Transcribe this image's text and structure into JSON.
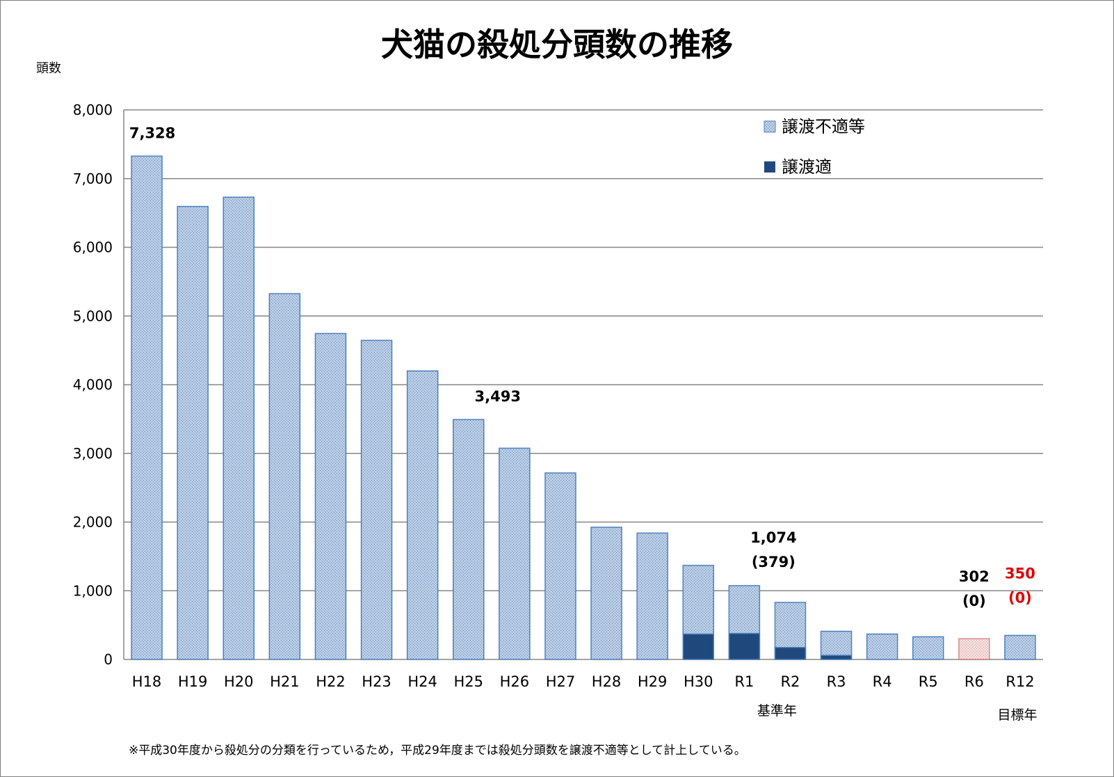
{
  "chart_data": {
    "type": "bar",
    "stacked": true,
    "title": "犬猫の殺処分頭数の推移",
    "ylabel": "頭数",
    "xlabel": "",
    "ylim": [
      0,
      8000
    ],
    "yticks": [
      0,
      1000,
      2000,
      3000,
      4000,
      5000,
      6000,
      7000,
      8000
    ],
    "ytick_labels": [
      "0",
      "1,000",
      "2,000",
      "3,000",
      "4,000",
      "5,000",
      "6,000",
      "7,000",
      "8,000"
    ],
    "grid": true,
    "legend_position": "top-right",
    "categories": [
      "H18",
      "H19",
      "H20",
      "H21",
      "H22",
      "H23",
      "H24",
      "H25",
      "H26",
      "H27",
      "H28",
      "H29",
      "H30",
      "R1",
      "R2",
      "R3",
      "R4",
      "R5",
      "R6",
      "R12"
    ],
    "series": [
      {
        "name": "譲渡適",
        "color": "#1f497d",
        "values": [
          0,
          0,
          0,
          0,
          0,
          0,
          0,
          0,
          0,
          0,
          0,
          0,
          370,
          379,
          175,
          60,
          0,
          0,
          0,
          0
        ]
      },
      {
        "name": "譲渡不適等",
        "color": "#b8cce4",
        "values": [
          7328,
          6595,
          6730,
          5325,
          4745,
          4645,
          4200,
          3493,
          3075,
          2715,
          1925,
          1840,
          1000,
          695,
          655,
          350,
          370,
          330,
          302,
          350
        ]
      }
    ],
    "highlight": {
      "R6": "#f2dcdb"
    },
    "annotations": [
      {
        "category": "H18",
        "text": "7,328"
      },
      {
        "category": "H25",
        "text": "3,493"
      },
      {
        "category": "R1",
        "text": "1,074",
        "subtext": "(379)"
      },
      {
        "category": "R6",
        "text": "302",
        "subtext": "(0)"
      },
      {
        "category": "R12",
        "text": "350",
        "subtext": "(0)",
        "color": "#e00000"
      }
    ],
    "category_notes": [
      {
        "category": "R1",
        "text": "基準年"
      },
      {
        "category": "R12",
        "text": "目標年"
      }
    ],
    "footnote": "※平成30年度から殺処分の分類を行っているため，平成29年度までは殺処分頭数を譲渡不適等として計上している。"
  }
}
